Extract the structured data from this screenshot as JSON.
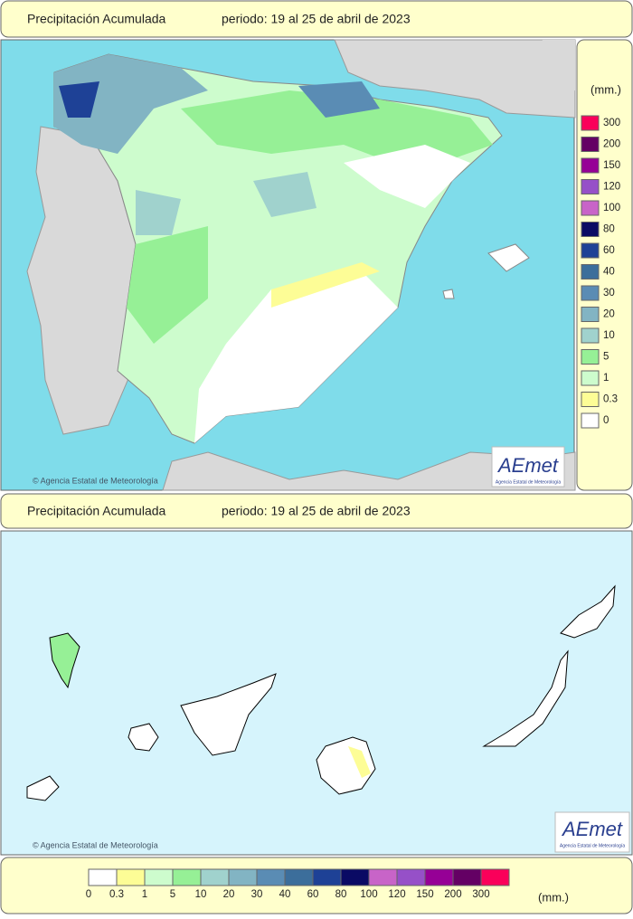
{
  "top_panel": {
    "title": "Precipitación Acumulada",
    "period": "periodo: 19 al 25 de abril de 2023",
    "credit": "© Agencia Estatal de Meteorología",
    "logo": "AEmet",
    "logo_subtitle": "Agencia Estatal de Meteorología",
    "legend": {
      "unit": "(mm.)",
      "classes": [
        {
          "value": 0,
          "color": "#ffffff"
        },
        {
          "value": 0.3,
          "color": "#fdfd96"
        },
        {
          "value": 1,
          "color": "#cdfccd"
        },
        {
          "value": 5,
          "color": "#96f096"
        },
        {
          "value": 10,
          "color": "#a0d2cd"
        },
        {
          "value": 20,
          "color": "#82b4c3"
        },
        {
          "value": 30,
          "color": "#5a8cb4"
        },
        {
          "value": 40,
          "color": "#3c6e9b"
        },
        {
          "value": 60,
          "color": "#1e4196"
        },
        {
          "value": 80,
          "color": "#0a0a64"
        },
        {
          "value": 100,
          "color": "#c864c8"
        },
        {
          "value": 120,
          "color": "#9650c8"
        },
        {
          "value": 150,
          "color": "#960096"
        },
        {
          "value": 200,
          "color": "#640064"
        },
        {
          "value": 300,
          "color": "#fa005a"
        }
      ]
    }
  },
  "bottom_panel": {
    "title": "Precipitación Acumulada",
    "period": "periodo: 19 al 25 de abril de 2023",
    "credit": "© Agencia Estatal de Meteorología",
    "logo": "AEmet",
    "logo_subtitle": "Agencia Estatal de Meteorología",
    "legend": {
      "unit": "(mm.)",
      "classes": [
        {
          "value": 0,
          "color": "#ffffff"
        },
        {
          "value": 0.3,
          "color": "#fdfd96"
        },
        {
          "value": 1,
          "color": "#cdfccd"
        },
        {
          "value": 5,
          "color": "#96f096"
        },
        {
          "value": 10,
          "color": "#a0d2cd"
        },
        {
          "value": 20,
          "color": "#82b4c3"
        },
        {
          "value": 30,
          "color": "#5a8cb4"
        },
        {
          "value": 40,
          "color": "#3c6e9b"
        },
        {
          "value": 60,
          "color": "#1e4196"
        },
        {
          "value": 80,
          "color": "#0a0a64"
        },
        {
          "value": 100,
          "color": "#c864c8"
        },
        {
          "value": 120,
          "color": "#9650c8"
        },
        {
          "value": 150,
          "color": "#960096"
        },
        {
          "value": 200,
          "color": "#640064"
        },
        {
          "value": 300,
          "color": "#fa005a"
        }
      ]
    }
  }
}
